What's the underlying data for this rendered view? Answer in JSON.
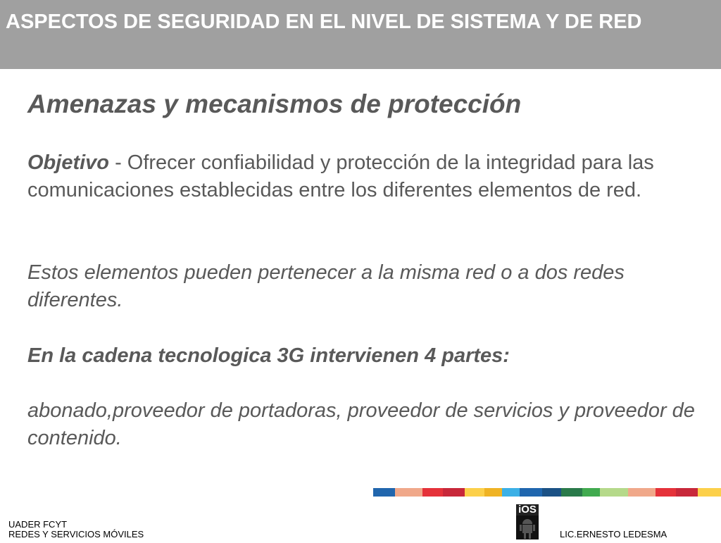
{
  "header": {
    "title": "ASPECTOS DE SEGURIDAD EN EL NIVEL DE SISTEMA Y DE RED"
  },
  "content": {
    "subtitle": "Amenazas y mecanismos de protección",
    "objective_label": "Objetivo",
    "objective_text": " - Ofrecer confiabilidad y protección de la integridad para las comunicaciones establecidas entre los diferentes elementos de red.",
    "elements_text": "Estos elementos pueden pertenecer a la misma red o a dos redes diferentes.",
    "chain_heading": "En la cadena tecnologica 3G intervienen 4 partes:",
    "parties_text": "abonado,proveedor de portadoras, proveedor de servicios y proveedor de contenido."
  },
  "footer": {
    "left_line1": "UADER FCYT",
    "left_line2": "REDES Y SERVICIOS MÓVILES",
    "author": "LIC.ERNESTO LEDESMA",
    "logo_text": "iOS",
    "logo_icon": "android-robot-icon"
  },
  "colors": {
    "header_bg": "#a0a0a0",
    "stripe": [
      "#2166ad",
      "#f0a88a",
      "#e5323a",
      "#c8283a",
      "#fcd04a",
      "#efb324",
      "#3bb0e6",
      "#1f66ae",
      "#1b5185",
      "#2a7a4a",
      "#41aa4f",
      "#b5d98a",
      "#f0a88a",
      "#e5323a",
      "#c8283a",
      "#fcd04a"
    ]
  }
}
